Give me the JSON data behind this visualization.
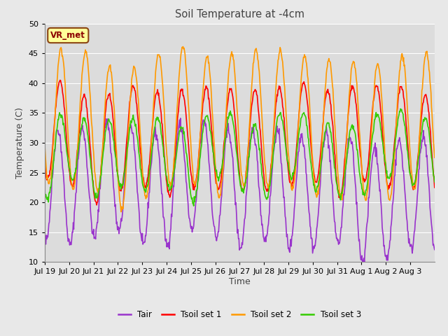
{
  "title": "Soil Temperature at -4cm",
  "xlabel": "Time",
  "ylabel": "Temperature (C)",
  "ylim": [
    10,
    50
  ],
  "n_days": 16,
  "annotation_text": "VR_met",
  "annotation_color": "#8B0000",
  "annotation_bg": "#FFFF99",
  "annotation_border": "#8B4513",
  "fig_bg": "#E8E8E8",
  "plot_bg": "#DCDCDC",
  "grid_color": "#FFFFFF",
  "colors": {
    "Tair": "#9933CC",
    "Tsoil1": "#FF0000",
    "Tsoil2": "#FF9900",
    "Tsoil3": "#33CC00"
  },
  "legend_labels": [
    "Tair",
    "Tsoil set 1",
    "Tsoil set 2",
    "Tsoil set 3"
  ],
  "tick_labels": [
    "Jul 19",
    "Jul 20",
    "Jul 21",
    "Jul 22",
    "Jul 23",
    "Jul 24",
    "Jul 25",
    "Jul 26",
    "Jul 27",
    "Jul 28",
    "Jul 29",
    "Jul 30",
    "Jul 31",
    "Aug 1",
    "Aug 2",
    "Aug 3"
  ],
  "tick_positions": [
    0,
    1,
    2,
    3,
    4,
    5,
    6,
    7,
    8,
    9,
    10,
    11,
    12,
    13,
    14,
    15
  ],
  "yticks": [
    10,
    15,
    20,
    25,
    30,
    35,
    40,
    45,
    50
  ],
  "linewidth": 1.2
}
